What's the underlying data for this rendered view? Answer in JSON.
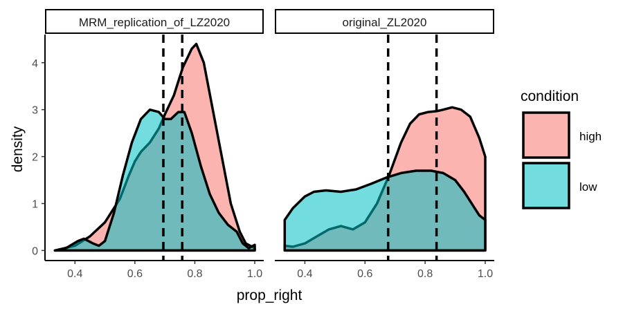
{
  "chart_data": {
    "type": "area",
    "facet_variable": "",
    "xlabel": "prop_right",
    "ylabel": "density",
    "xlim": [
      0.3,
      1.03
    ],
    "ylim": [
      -0.2,
      4.6
    ],
    "x_ticks": [
      0.4,
      0.6,
      0.8,
      1.0
    ],
    "x_tick_labels": [
      "0.4",
      "0.6",
      "0.8",
      "1.0"
    ],
    "y_ticks": [
      0,
      1,
      2,
      3,
      4
    ],
    "y_tick_labels": [
      "0",
      "1",
      "2",
      "3",
      "4"
    ],
    "grid": false,
    "legend": {
      "title": "condition",
      "placement": "right",
      "entries": [
        {
          "label": "high",
          "color": "#F8766D"
        },
        {
          "label": "low",
          "color": "#00BFC4"
        }
      ]
    },
    "fill_opacity": 0.55,
    "panels": [
      {
        "title": "MRM_replication_of_LZ2020",
        "vlines": [
          0.695,
          0.758
        ],
        "series": [
          {
            "name": "high",
            "color": "#F8766D",
            "points": [
              [
                0.333,
                0.0
              ],
              [
                0.4,
                0.1
              ],
              [
                0.45,
                0.3
              ],
              [
                0.5,
                0.6
              ],
              [
                0.55,
                1.1
              ],
              [
                0.58,
                1.6
              ],
              [
                0.6,
                1.9
              ],
              [
                0.62,
                2.1
              ],
              [
                0.65,
                2.3
              ],
              [
                0.68,
                2.6
              ],
              [
                0.7,
                2.9
              ],
              [
                0.73,
                3.3
              ],
              [
                0.76,
                3.9
              ],
              [
                0.79,
                4.3
              ],
              [
                0.805,
                4.4
              ],
              [
                0.83,
                4.0
              ],
              [
                0.86,
                3.0
              ],
              [
                0.89,
                2.0
              ],
              [
                0.92,
                1.0
              ],
              [
                0.95,
                0.4
              ],
              [
                0.97,
                0.15
              ],
              [
                1.0,
                0.05
              ]
            ]
          },
          {
            "name": "low",
            "color": "#00BFC4",
            "points": [
              [
                0.333,
                0.0
              ],
              [
                0.37,
                0.05
              ],
              [
                0.41,
                0.2
              ],
              [
                0.43,
                0.25
              ],
              [
                0.46,
                0.15
              ],
              [
                0.48,
                0.1
              ],
              [
                0.5,
                0.2
              ],
              [
                0.53,
                0.8
              ],
              [
                0.56,
                1.6
              ],
              [
                0.59,
                2.3
              ],
              [
                0.62,
                2.8
              ],
              [
                0.65,
                3.0
              ],
              [
                0.68,
                2.95
              ],
              [
                0.7,
                2.8
              ],
              [
                0.72,
                2.8
              ],
              [
                0.745,
                2.95
              ],
              [
                0.765,
                2.95
              ],
              [
                0.79,
                2.5
              ],
              [
                0.82,
                1.8
              ],
              [
                0.85,
                1.2
              ],
              [
                0.88,
                0.8
              ],
              [
                0.91,
                0.55
              ],
              [
                0.94,
                0.4
              ],
              [
                0.96,
                0.15
              ],
              [
                0.98,
                0.05
              ],
              [
                1.0,
                0.12
              ]
            ]
          }
        ]
      },
      {
        "title": "original_ZL2020",
        "vlines": [
          0.677,
          0.838
        ],
        "series": [
          {
            "name": "high",
            "color": "#F8766D",
            "points": [
              [
                0.333,
                0.1
              ],
              [
                0.36,
                0.08
              ],
              [
                0.4,
                0.15
              ],
              [
                0.44,
                0.3
              ],
              [
                0.48,
                0.45
              ],
              [
                0.52,
                0.52
              ],
              [
                0.56,
                0.45
              ],
              [
                0.6,
                0.6
              ],
              [
                0.64,
                1.0
              ],
              [
                0.68,
                1.6
              ],
              [
                0.72,
                2.3
              ],
              [
                0.75,
                2.7
              ],
              [
                0.78,
                2.9
              ],
              [
                0.81,
                2.95
              ],
              [
                0.84,
                2.97
              ],
              [
                0.86,
                3.0
              ],
              [
                0.89,
                3.05
              ],
              [
                0.92,
                3.0
              ],
              [
                0.95,
                2.85
              ],
              [
                0.98,
                2.4
              ],
              [
                1.0,
                2.0
              ]
            ]
          },
          {
            "name": "low",
            "color": "#00BFC4",
            "points": [
              [
                0.333,
                0.65
              ],
              [
                0.36,
                0.9
              ],
              [
                0.4,
                1.15
              ],
              [
                0.43,
                1.25
              ],
              [
                0.47,
                1.28
              ],
              [
                0.52,
                1.25
              ],
              [
                0.57,
                1.3
              ],
              [
                0.62,
                1.42
              ],
              [
                0.67,
                1.55
              ],
              [
                0.72,
                1.65
              ],
              [
                0.77,
                1.7
              ],
              [
                0.82,
                1.7
              ],
              [
                0.86,
                1.65
              ],
              [
                0.9,
                1.5
              ],
              [
                0.93,
                1.25
              ],
              [
                0.96,
                0.95
              ],
              [
                0.98,
                0.75
              ],
              [
                1.0,
                0.65
              ]
            ]
          }
        ]
      }
    ]
  }
}
